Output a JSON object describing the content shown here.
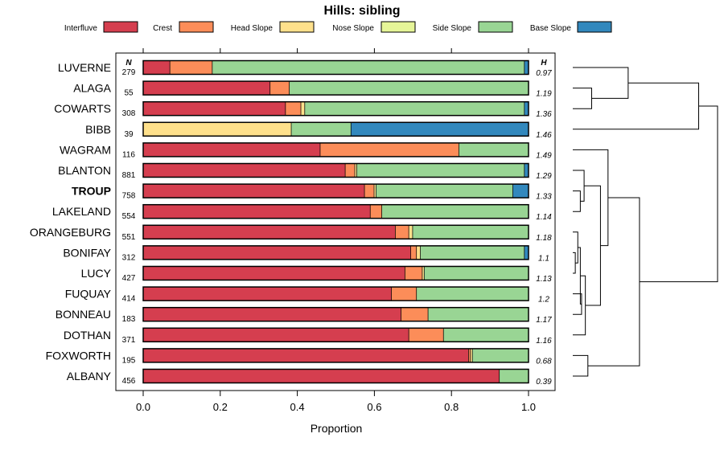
{
  "chart_data": {
    "type": "bar",
    "subtype": "stacked-horizontal-proportion",
    "title": "Hills: sibling",
    "xlabel": "Proportion",
    "xlim": [
      0,
      1
    ],
    "xticks": [
      "0.0",
      "0.2",
      "0.4",
      "0.6",
      "0.8",
      "1.0"
    ],
    "n_header": "N",
    "h_header": "H",
    "legend_position": "top",
    "components": [
      {
        "name": "Interfluve",
        "color": "#d53e4f"
      },
      {
        "name": "Crest",
        "color": "#fc8d59"
      },
      {
        "name": "Head Slope",
        "color": "#fee08b"
      },
      {
        "name": "Nose Slope",
        "color": "#e6f598"
      },
      {
        "name": "Side Slope",
        "color": "#99d594"
      },
      {
        "name": "Base Slope",
        "color": "#3288bd"
      }
    ],
    "rows": [
      {
        "name": "LUVERNE",
        "n": "279",
        "h": "0.97",
        "bold": false,
        "values": [
          0.07,
          0.11,
          0.0,
          0.0,
          0.81,
          0.01
        ]
      },
      {
        "name": "ALAGA",
        "n": "55",
        "h": "1.19",
        "bold": false,
        "values": [
          0.33,
          0.05,
          0.0,
          0.0,
          0.62,
          0.0
        ]
      },
      {
        "name": "COWARTS",
        "n": "308",
        "h": "1.36",
        "bold": false,
        "values": [
          0.37,
          0.04,
          0.01,
          0.0,
          0.57,
          0.01
        ]
      },
      {
        "name": "BIBB",
        "n": "39",
        "h": "1.46",
        "bold": false,
        "values": [
          0.0,
          0.0,
          0.385,
          0.0,
          0.155,
          0.46
        ]
      },
      {
        "name": "WAGRAM",
        "n": "116",
        "h": "1.49",
        "bold": false,
        "values": [
          0.46,
          0.36,
          0.0,
          0.0,
          0.18,
          0.0
        ]
      },
      {
        "name": "BLANTON",
        "n": "881",
        "h": "1.29",
        "bold": false,
        "values": [
          0.525,
          0.025,
          0.005,
          0.0,
          0.435,
          0.01
        ]
      },
      {
        "name": "TROUP",
        "n": "758",
        "h": "1.33",
        "bold": true,
        "values": [
          0.575,
          0.025,
          0.005,
          0.0,
          0.355,
          0.04
        ]
      },
      {
        "name": "LAKELAND",
        "n": "554",
        "h": "1.14",
        "bold": false,
        "values": [
          0.59,
          0.03,
          0.0,
          0.0,
          0.38,
          0.0
        ]
      },
      {
        "name": "ORANGEBURG",
        "n": "551",
        "h": "1.18",
        "bold": false,
        "values": [
          0.655,
          0.035,
          0.01,
          0.0,
          0.3,
          0.0
        ]
      },
      {
        "name": "BONIFAY",
        "n": "312",
        "h": "1.1",
        "bold": false,
        "values": [
          0.695,
          0.015,
          0.01,
          0.0,
          0.27,
          0.01
        ]
      },
      {
        "name": "LUCY",
        "n": "427",
        "h": "1.13",
        "bold": false,
        "values": [
          0.68,
          0.045,
          0.005,
          0.0,
          0.27,
          0.0
        ]
      },
      {
        "name": "FUQUAY",
        "n": "414",
        "h": "1.2",
        "bold": false,
        "values": [
          0.645,
          0.065,
          0.0,
          0.0,
          0.29,
          0.0
        ]
      },
      {
        "name": "BONNEAU",
        "n": "183",
        "h": "1.17",
        "bold": false,
        "values": [
          0.67,
          0.07,
          0.0,
          0.0,
          0.26,
          0.0
        ]
      },
      {
        "name": "DOTHAN",
        "n": "371",
        "h": "1.16",
        "bold": false,
        "values": [
          0.69,
          0.09,
          0.0,
          0.0,
          0.22,
          0.0
        ]
      },
      {
        "name": "FOXWORTH",
        "n": "195",
        "h": "0.68",
        "bold": false,
        "values": [
          0.845,
          0.005,
          0.005,
          0.0,
          0.145,
          0.0
        ]
      },
      {
        "name": "ALBANY",
        "n": "456",
        "h": "0.39",
        "bold": false,
        "values": [
          0.925,
          0.0,
          0.0,
          0.0,
          0.075,
          0.0
        ]
      }
    ],
    "dendrogram": {
      "description": "hierarchical clustering of rows (leaf order top to bottom as listed)",
      "merges": [
        {
          "a": 1,
          "b": 2,
          "height": 0.15
        },
        {
          "a": 0,
          "b": "m0",
          "height": 0.44
        },
        {
          "a": 6,
          "b": 7,
          "height": 0.06
        },
        {
          "a": 5,
          "b": "m2",
          "height": 0.09
        },
        {
          "a": 9,
          "b": 10,
          "height": 0.02
        },
        {
          "a": 8,
          "b": "m4",
          "height": 0.04
        },
        {
          "a": 11,
          "b": 12,
          "height": 0.07
        },
        {
          "a": "m5",
          "b": "m6",
          "height": 0.06
        },
        {
          "a": "m7",
          "b": 13,
          "height": 0.1
        },
        {
          "a": "m3",
          "b": "m8",
          "height": 0.22
        },
        {
          "a": 4,
          "b": "m9",
          "height": 0.28
        },
        {
          "a": 14,
          "b": 15,
          "height": 0.12
        },
        {
          "a": "m10",
          "b": "m11",
          "height": 0.53
        },
        {
          "a": "m1",
          "b": 3,
          "height": 1.0
        },
        {
          "a": "m13",
          "b": "m12",
          "height": 1.15
        }
      ]
    }
  }
}
